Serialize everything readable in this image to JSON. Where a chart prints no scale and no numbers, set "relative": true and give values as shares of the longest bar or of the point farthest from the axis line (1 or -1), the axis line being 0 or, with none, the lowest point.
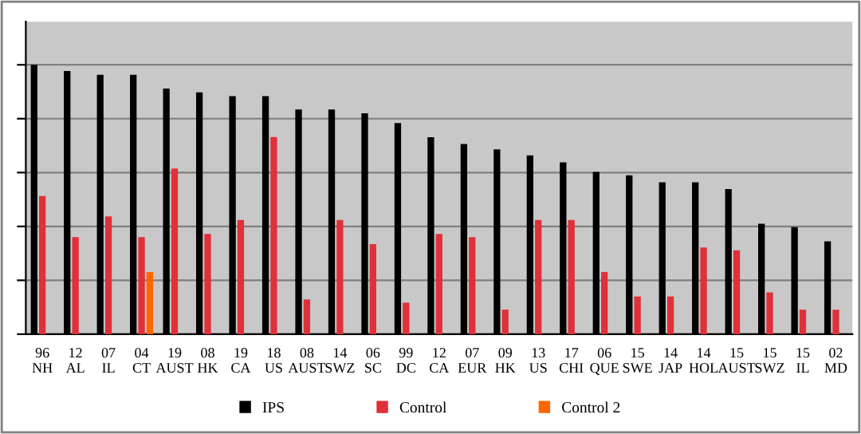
{
  "chart_data": {
    "type": "bar",
    "relative": true,
    "grid": "y",
    "legend": "bottom",
    "categories": [
      "96\nNH",
      "12\nAL",
      "07\nIL",
      "04\nCT",
      "19\nAUST",
      "08\nHK",
      "19\nCA",
      "18\nUS",
      "08\nAUST",
      "14\nSWZ",
      "06\nSC",
      "99\nDC",
      "12\nCA",
      "07\nEUR",
      "09\nHK",
      "13\nUS",
      "17\nCHI",
      "06\nQUE",
      "15\nSWE",
      "14\nJAP",
      "14\nHOL",
      "15\nAUST",
      "15\nSWZ",
      "15\nIL",
      "02\nMD"
    ],
    "series": [
      {
        "name": "IPS",
        "color": "#000000",
        "values": [
          1,
          0.977,
          0.963,
          0.963,
          0.912,
          0.898,
          0.884,
          0.884,
          0.834,
          0.834,
          0.82,
          0.784,
          0.731,
          0.706,
          0.686,
          0.664,
          0.638,
          0.602,
          0.59,
          0.564,
          0.564,
          0.539,
          0.41,
          0.397,
          0.345
        ]
      },
      {
        "name": "Control",
        "color": "#e0303a",
        "values": [
          0.513,
          0.36,
          0.437,
          0.36,
          0.615,
          0.372,
          0.424,
          0.732,
          0.129,
          0.424,
          0.334,
          0.117,
          0.372,
          0.36,
          0.091,
          0.424,
          0.424,
          0.231,
          0.14,
          0.14,
          0.322,
          0.311,
          0.155,
          0.091,
          0.091
        ]
      },
      {
        "name": "Control 2",
        "color": "#ff6600",
        "values": [
          null,
          null,
          null,
          0.231,
          null,
          null,
          null,
          null,
          null,
          null,
          null,
          null,
          null,
          null,
          null,
          null,
          null,
          null,
          null,
          null,
          null,
          null,
          null,
          null,
          null
        ]
      }
    ]
  }
}
